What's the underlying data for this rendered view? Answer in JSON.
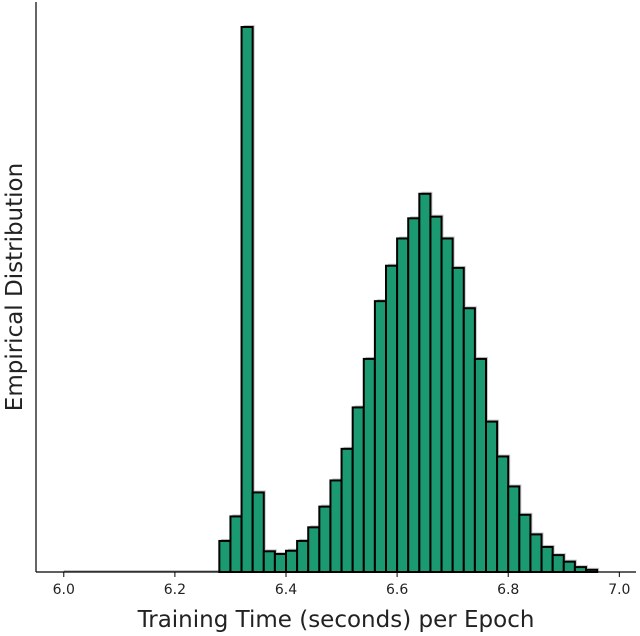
{
  "chart_data": {
    "type": "bar",
    "xlabel": "Training Time (seconds) per Epoch",
    "ylabel": "Empirical Distribution",
    "xlim": [
      5.95,
      7.03
    ],
    "ylim": [
      0,
      1.0
    ],
    "xticks": [
      "6.0",
      "6.2",
      "6.4",
      "6.6",
      "6.8",
      "7.0"
    ],
    "grid": false,
    "bin_width": 0.02,
    "bins": [
      {
        "x": 6.29,
        "y": 0.057
      },
      {
        "x": 6.31,
        "y": 0.102
      },
      {
        "x": 6.33,
        "y": 1.0
      },
      {
        "x": 6.35,
        "y": 0.146
      },
      {
        "x": 6.37,
        "y": 0.038
      },
      {
        "x": 6.39,
        "y": 0.033
      },
      {
        "x": 6.41,
        "y": 0.039
      },
      {
        "x": 6.43,
        "y": 0.057
      },
      {
        "x": 6.45,
        "y": 0.082
      },
      {
        "x": 6.47,
        "y": 0.12
      },
      {
        "x": 6.49,
        "y": 0.168
      },
      {
        "x": 6.51,
        "y": 0.226
      },
      {
        "x": 6.53,
        "y": 0.302
      },
      {
        "x": 6.55,
        "y": 0.391
      },
      {
        "x": 6.57,
        "y": 0.497
      },
      {
        "x": 6.59,
        "y": 0.562
      },
      {
        "x": 6.61,
        "y": 0.612
      },
      {
        "x": 6.63,
        "y": 0.649
      },
      {
        "x": 6.65,
        "y": 0.694
      },
      {
        "x": 6.67,
        "y": 0.652
      },
      {
        "x": 6.69,
        "y": 0.612
      },
      {
        "x": 6.71,
        "y": 0.558
      },
      {
        "x": 6.73,
        "y": 0.484
      },
      {
        "x": 6.75,
        "y": 0.391
      },
      {
        "x": 6.77,
        "y": 0.276
      },
      {
        "x": 6.79,
        "y": 0.212
      },
      {
        "x": 6.81,
        "y": 0.157
      },
      {
        "x": 6.83,
        "y": 0.105
      },
      {
        "x": 6.85,
        "y": 0.069
      },
      {
        "x": 6.87,
        "y": 0.046
      },
      {
        "x": 6.89,
        "y": 0.031
      },
      {
        "x": 6.91,
        "y": 0.019
      },
      {
        "x": 6.93,
        "y": 0.009
      },
      {
        "x": 6.95,
        "y": 0.004
      }
    ],
    "colors": {
      "bar_fill": "#1b9a72",
      "bar_edge": "#000000"
    }
  }
}
